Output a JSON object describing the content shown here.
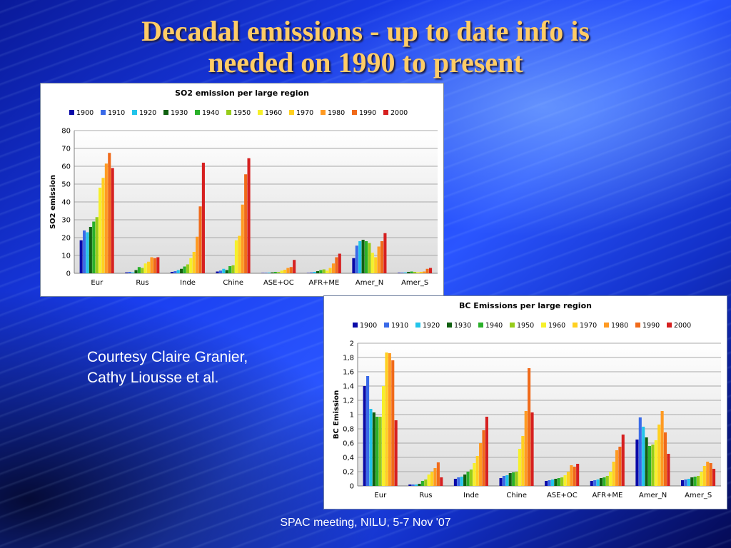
{
  "slide": {
    "title_line1": "Decadal emissions - up to date info is",
    "title_line2": "needed on 1990 to present",
    "courtesy_line1": "Courtesy Claire Granier,",
    "courtesy_line2": "Cathy Liousse et al.",
    "footer": "SPAC meeting, NILU, 5-7 Nov '07"
  },
  "chart_data": [
    {
      "type": "bar",
      "title": "SO2 emission per large region",
      "xlabel": "",
      "ylabel": "SO2 emission",
      "ylim": [
        0,
        80
      ],
      "yticks": [
        0,
        10,
        20,
        30,
        40,
        50,
        60,
        70,
        80
      ],
      "ytick_labels": [
        "0",
        "10",
        "20",
        "30",
        "40",
        "50",
        "60",
        "70",
        "80"
      ],
      "grid": true,
      "legend_position": "top",
      "categories": [
        "Eur",
        "Rus",
        "Inde",
        "Chine",
        "ASE+OC",
        "AFR+ME",
        "Amer_N",
        "Amer_S"
      ],
      "series": [
        {
          "name": "1900",
          "color": "#0a0aa8",
          "values": [
            18.5,
            0.5,
            0.8,
            1.0,
            0.2,
            0.2,
            8.5,
            0.3
          ]
        },
        {
          "name": "1910",
          "color": "#3a6ae8",
          "values": [
            24.0,
            0.8,
            1.2,
            1.5,
            0.3,
            0.5,
            15.5,
            0.4
          ]
        },
        {
          "name": "1920",
          "color": "#22c4ea",
          "values": [
            23.0,
            0.5,
            1.8,
            2.5,
            0.4,
            0.8,
            18.0,
            0.5
          ]
        },
        {
          "name": "1930",
          "color": "#106010",
          "values": [
            26.0,
            1.8,
            2.5,
            1.8,
            0.5,
            1.2,
            18.8,
            0.8
          ]
        },
        {
          "name": "1940",
          "color": "#2ab02a",
          "values": [
            29.0,
            3.5,
            3.8,
            4.0,
            0.8,
            1.8,
            18.0,
            1.0
          ]
        },
        {
          "name": "1950",
          "color": "#96cc1a",
          "values": [
            31.5,
            3.0,
            5.0,
            4.5,
            0.7,
            2.2,
            17.0,
            0.8
          ]
        },
        {
          "name": "1960",
          "color": "#f6f02a",
          "values": [
            48.0,
            5.5,
            8.5,
            18.5,
            1.5,
            1.5,
            11.5,
            0.6
          ]
        },
        {
          "name": "1970",
          "color": "#ffd020",
          "values": [
            53.5,
            6.5,
            12.0,
            21.0,
            2.0,
            3.0,
            9.0,
            0.8
          ]
        },
        {
          "name": "1980",
          "color": "#ff9a22",
          "values": [
            61.5,
            9.0,
            20.5,
            38.5,
            3.0,
            5.5,
            15.0,
            1.0
          ]
        },
        {
          "name": "1990",
          "color": "#f06a1a",
          "values": [
            67.5,
            8.5,
            37.5,
            55.5,
            3.5,
            9.0,
            18.0,
            2.5
          ]
        },
        {
          "name": "2000",
          "color": "#d62020",
          "values": [
            59.0,
            9.0,
            62.0,
            64.5,
            7.5,
            11.0,
            22.5,
            3.0
          ]
        }
      ]
    },
    {
      "type": "bar",
      "title": "BC Emissions per large region",
      "xlabel": "",
      "ylabel": "BC Emission",
      "ylim": [
        0,
        2
      ],
      "yticks": [
        0,
        0.2,
        0.4,
        0.6,
        0.8,
        1,
        1.2,
        1.4,
        1.6,
        1.8,
        2
      ],
      "ytick_labels": [
        "0",
        "0,2",
        "0,4",
        "0,6",
        "0,8",
        "1",
        "1,2",
        "1,4",
        "1,6",
        "1,8",
        "2"
      ],
      "grid": true,
      "legend_position": "top",
      "categories": [
        "Eur",
        "Rus",
        "Inde",
        "Chine",
        "ASE+OC",
        "AFR+ME",
        "Amer_N",
        "Amer_S"
      ],
      "series": [
        {
          "name": "1900",
          "color": "#0a0aa8",
          "values": [
            1.4,
            0.02,
            0.1,
            0.11,
            0.07,
            0.07,
            0.65,
            0.08
          ]
        },
        {
          "name": "1910",
          "color": "#3a6ae8",
          "values": [
            1.54,
            0.02,
            0.12,
            0.14,
            0.08,
            0.08,
            0.96,
            0.09
          ]
        },
        {
          "name": "1920",
          "color": "#22c4ea",
          "values": [
            1.08,
            0.02,
            0.13,
            0.15,
            0.09,
            0.09,
            0.83,
            0.1
          ]
        },
        {
          "name": "1930",
          "color": "#106010",
          "values": [
            1.03,
            0.03,
            0.16,
            0.18,
            0.1,
            0.11,
            0.68,
            0.12
          ]
        },
        {
          "name": "1940",
          "color": "#2ab02a",
          "values": [
            0.97,
            0.07,
            0.2,
            0.19,
            0.11,
            0.12,
            0.56,
            0.13
          ]
        },
        {
          "name": "1950",
          "color": "#96cc1a",
          "values": [
            0.97,
            0.09,
            0.23,
            0.2,
            0.12,
            0.14,
            0.58,
            0.14
          ]
        },
        {
          "name": "1960",
          "color": "#f6f02a",
          "values": [
            1.4,
            0.16,
            0.32,
            0.52,
            0.15,
            0.2,
            0.64,
            0.2
          ]
        },
        {
          "name": "1970",
          "color": "#ffd020",
          "values": [
            1.87,
            0.2,
            0.42,
            0.7,
            0.2,
            0.34,
            0.86,
            0.28
          ]
        },
        {
          "name": "1980",
          "color": "#ff9a22",
          "values": [
            1.86,
            0.25,
            0.6,
            1.05,
            0.29,
            0.5,
            1.05,
            0.34
          ]
        },
        {
          "name": "1990",
          "color": "#f06a1a",
          "values": [
            1.76,
            0.33,
            0.78,
            1.65,
            0.27,
            0.55,
            0.75,
            0.32
          ]
        },
        {
          "name": "2000",
          "color": "#d62020",
          "values": [
            0.92,
            0.12,
            0.97,
            1.03,
            0.31,
            0.72,
            0.45,
            0.24
          ]
        }
      ]
    }
  ]
}
